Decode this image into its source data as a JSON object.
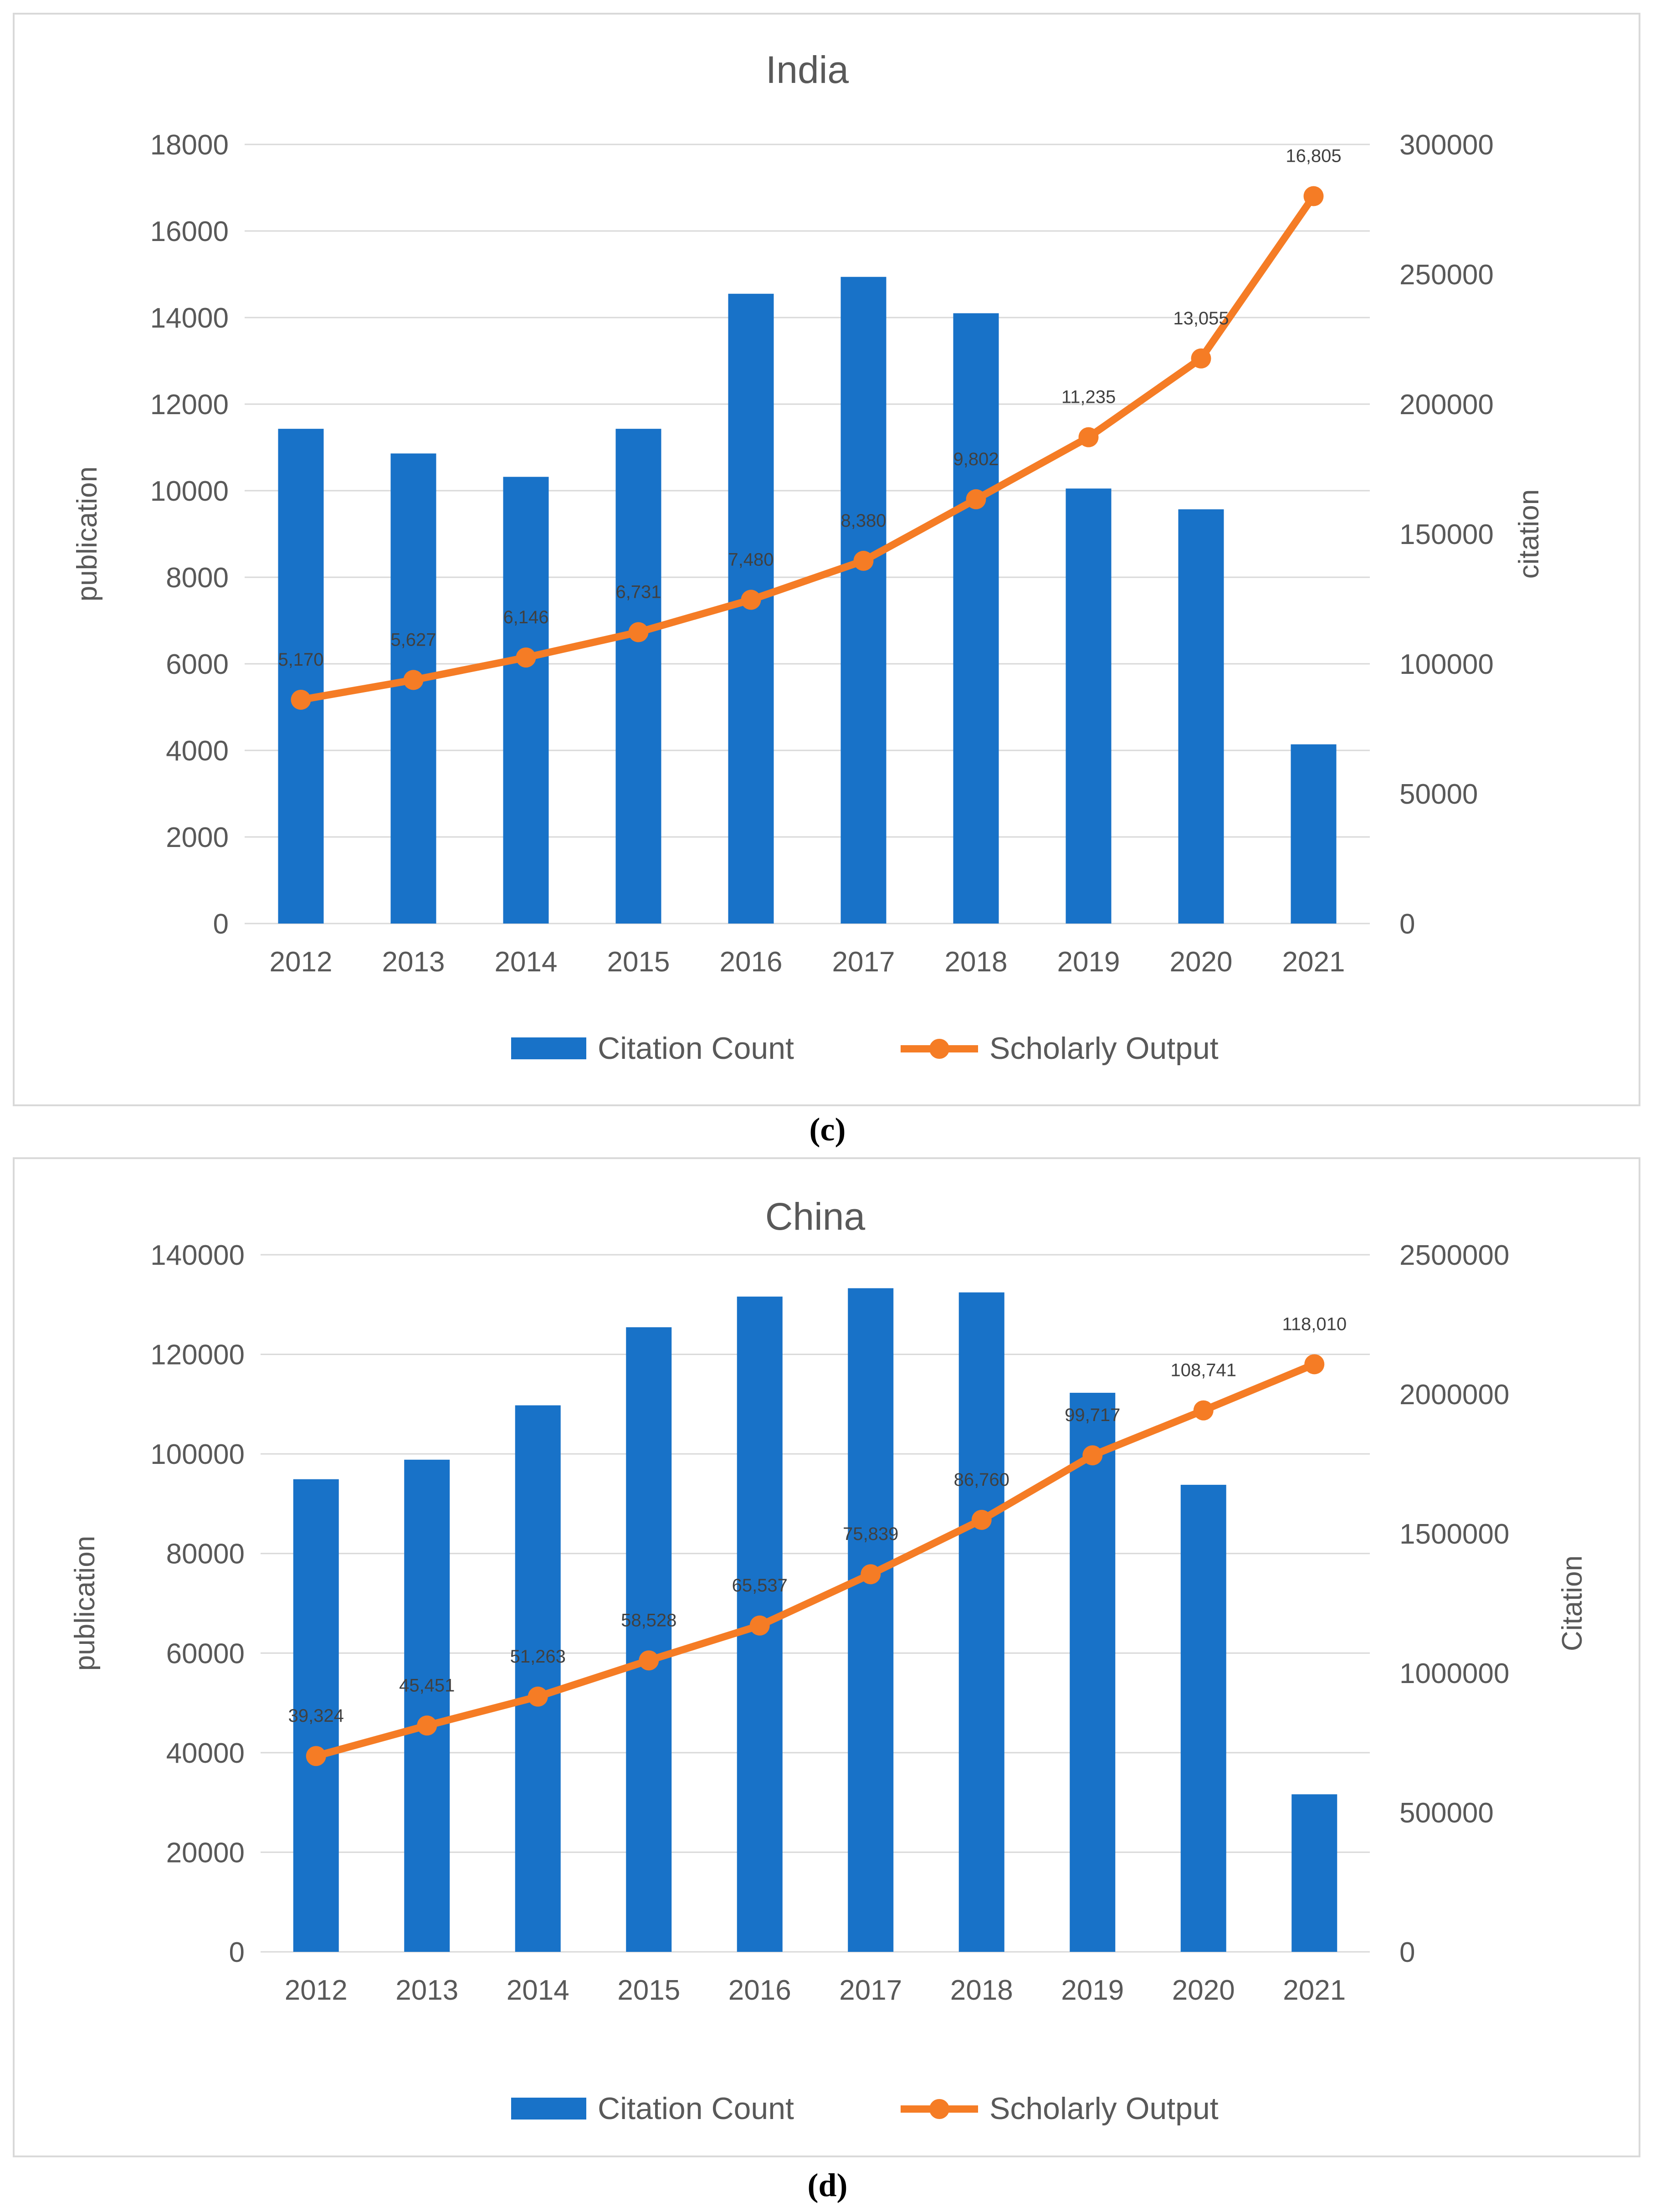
{
  "figure": {
    "labels": [
      "(c)",
      "(d)"
    ]
  },
  "colors": {
    "bar": "#1872c8",
    "line": "#f57c25",
    "grid": "#d9d9d9",
    "text": "#595959",
    "label": "#404040"
  },
  "chart_data": [
    {
      "type": "bar+line",
      "title": "India",
      "categories": [
        "2012",
        "2013",
        "2014",
        "2015",
        "2016",
        "2017",
        "2018",
        "2019",
        "2020",
        "2021"
      ],
      "left_axis": {
        "label": "publication",
        "ylim": [
          0,
          18000
        ],
        "ticks": [
          "0",
          "2000",
          "4000",
          "6000",
          "8000",
          "10000",
          "12000",
          "14000",
          "16000",
          "18000"
        ]
      },
      "right_axis": {
        "label": "citation",
        "ylim": [
          0,
          300000
        ],
        "ticks": [
          "0",
          "50000",
          "100000",
          "150000",
          "200000",
          "250000",
          "300000"
        ]
      },
      "series": [
        {
          "name": "Citation Count",
          "type": "bar",
          "axis": "right",
          "values": [
            190500,
            181000,
            172000,
            190500,
            242500,
            249000,
            235000,
            167500,
            159500,
            69000
          ]
        },
        {
          "name": "Scholarly Output",
          "type": "line",
          "axis": "left",
          "values": [
            5170,
            5627,
            6146,
            6731,
            7480,
            8380,
            9802,
            11235,
            13055,
            16805
          ],
          "data_labels": [
            "5,170",
            "5,627",
            "6,146",
            "6,731",
            "7,480",
            "8,380",
            "9,802",
            "11,235",
            "13,055",
            "16,805"
          ]
        }
      ],
      "legend": [
        "Citation Count",
        "Scholarly Output"
      ],
      "grid": true
    },
    {
      "type": "bar+line",
      "title": "China",
      "categories": [
        "2012",
        "2013",
        "2014",
        "2015",
        "2016",
        "2017",
        "2018",
        "2019",
        "2020",
        "2021"
      ],
      "left_axis": {
        "label": "publication",
        "ylim": [
          0,
          140000
        ],
        "ticks": [
          "0",
          "20000",
          "40000",
          "60000",
          "80000",
          "100000",
          "120000",
          "140000"
        ]
      },
      "right_axis": {
        "label": "Citation",
        "ylim": [
          0,
          2500000
        ],
        "ticks": [
          "0",
          "500000",
          "1000000",
          "1500000",
          "2000000",
          "2500000"
        ]
      },
      "series": [
        {
          "name": "Citation Count",
          "type": "bar",
          "axis": "right",
          "values": [
            1695000,
            1765000,
            1960000,
            2240000,
            2350000,
            2380000,
            2365000,
            2005000,
            1675000,
            565000
          ]
        },
        {
          "name": "Scholarly Output",
          "type": "line",
          "axis": "left",
          "values": [
            39324,
            45451,
            51263,
            58528,
            65537,
            75839,
            86760,
            99717,
            108741,
            118010
          ],
          "data_labels": [
            "39,324",
            "45,451",
            "51,263",
            "58,528",
            "65,537",
            "75,839",
            "86,760",
            "99,717",
            "108,741",
            "118,010"
          ]
        }
      ],
      "legend": [
        "Citation Count",
        "Scholarly Output"
      ],
      "grid": true
    }
  ]
}
